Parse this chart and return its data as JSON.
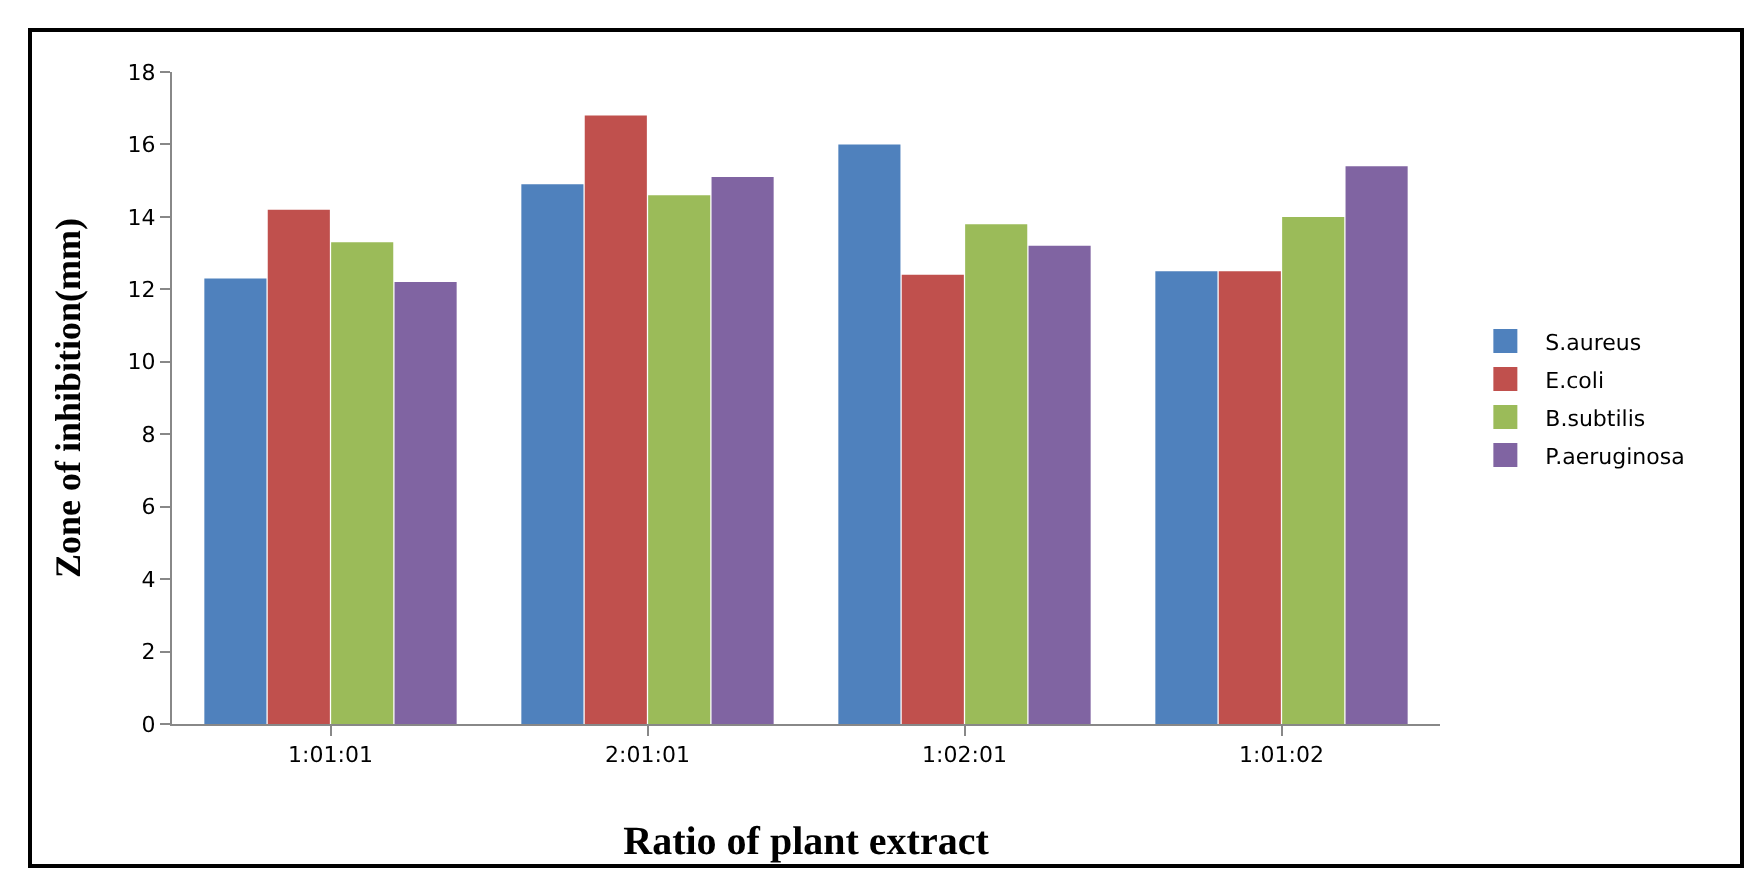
{
  "chart_data": {
    "type": "bar",
    "xlabel": "Ratio of plant extract",
    "ylabel": "Zone of inhibition(mm)",
    "categories": [
      "1:01:01",
      "2:01:01",
      "1:02:01",
      "1:01:02"
    ],
    "series": [
      {
        "name": "S.aureus",
        "color": "#4f81bd",
        "values": [
          12.3,
          14.9,
          16.0,
          12.5
        ]
      },
      {
        "name": "E.coli",
        "color": "#c0504d",
        "values": [
          14.2,
          16.8,
          12.4,
          12.5
        ]
      },
      {
        "name": "B.subtilis",
        "color": "#9bbb59",
        "values": [
          13.3,
          14.6,
          13.8,
          14.0
        ]
      },
      {
        "name": "P.aeruginosa",
        "color": "#8064a2",
        "values": [
          12.2,
          15.1,
          13.2,
          15.4
        ]
      }
    ],
    "ylim": [
      0,
      18
    ],
    "yticks": [
      0,
      2,
      4,
      6,
      8,
      10,
      12,
      14,
      16,
      18
    ],
    "grid": false,
    "legend": "right"
  }
}
